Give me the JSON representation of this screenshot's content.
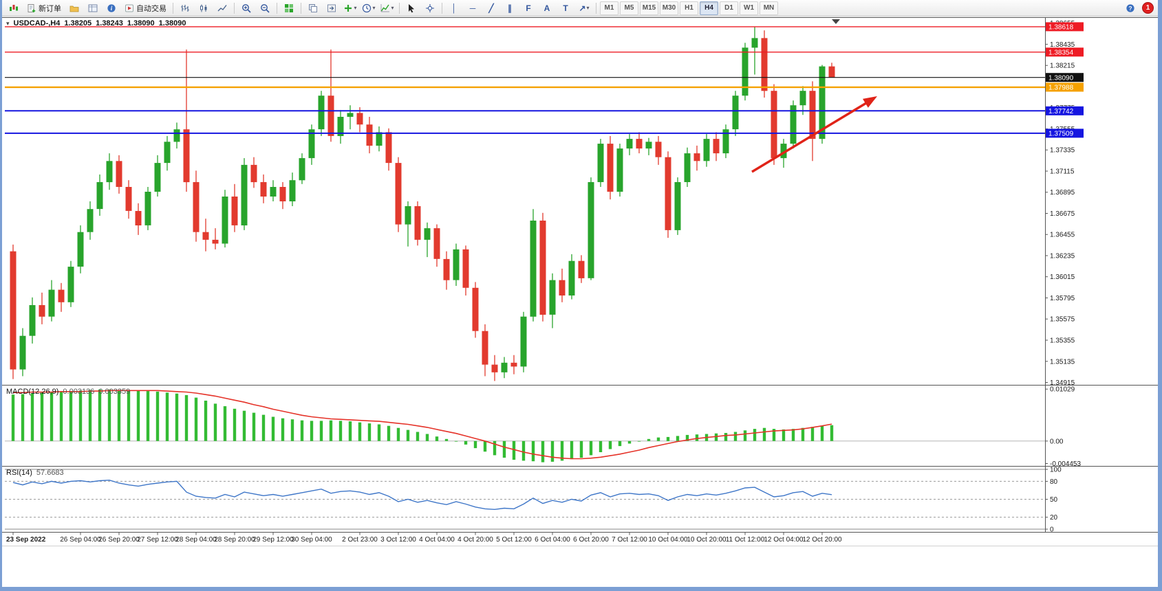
{
  "toolbar": {
    "new_order_label": "新订单",
    "auto_trading_label": "自动交易",
    "timeframes": [
      "M1",
      "M5",
      "M15",
      "M30",
      "H1",
      "H4",
      "D1",
      "W1",
      "MN"
    ],
    "active_timeframe": "H4",
    "notification_count": "1",
    "icons": {
      "caret": "▾",
      "vline": "│",
      "hline": "─",
      "trendline": "╱",
      "channel": "∥",
      "fibonacci": "F",
      "text": "A",
      "label": "T",
      "arrow_tool": "↗",
      "help": "?"
    }
  },
  "chart": {
    "symbol_label": "USDCAD-,H4",
    "quote_open": "1.38205",
    "quote_high": "1.38243",
    "quote_low": "1.38090",
    "quote_close": "1.38090",
    "up_color": "#28a42c",
    "down_color": "#e23a2e",
    "arrow_color": "#e02318",
    "levels": [
      {
        "label": "1.38618",
        "price": 1.38618,
        "color": "#ee1c25",
        "width": 1.4
      },
      {
        "label": "1.38354",
        "price": 1.38354,
        "color": "#ee1c25",
        "width": 1.4
      },
      {
        "label": "1.38090",
        "price": 1.3809,
        "color": "#111111",
        "width": 1.2
      },
      {
        "label": "1.37988",
        "price": 1.37988,
        "color": "#f5a100",
        "width": 2.4
      },
      {
        "label": "1.37742",
        "price": 1.37742,
        "color": "#1515e0",
        "width": 2.0
      },
      {
        "label": "1.37509",
        "price": 1.37509,
        "color": "#1515e0",
        "width": 2.0
      }
    ],
    "y_ticks": [
      "1.38655",
      "1.38435",
      "1.38215",
      "1.37995",
      "1.37775",
      "1.37555",
      "1.37335",
      "1.37115",
      "1.36895",
      "1.36675",
      "1.36455",
      "1.36235",
      "1.36015",
      "1.35795",
      "1.35575",
      "1.35355",
      "1.35135",
      "1.34915"
    ]
  },
  "macd": {
    "name": "MACD(12,26,9)",
    "value_main": "0.003136",
    "value_signal": "0.003359",
    "scale_max": "0.01029",
    "scale_zero": "0.00",
    "scale_min": "-0.004453"
  },
  "rsi": {
    "name": "RSI(14)",
    "value": "57.6683",
    "scale": [
      "100",
      "80",
      "50",
      "20",
      "0"
    ]
  },
  "chart_data": [
    {
      "type": "candlestick",
      "name": "USDCAD H4",
      "ylim": [
        1.3489,
        1.3871
      ],
      "x_labels": [
        "23 Sep 2022",
        "26 Sep 04:00",
        "26 Sep 20:00",
        "27 Sep 12:00",
        "28 Sep 04:00",
        "28 Sep 20:00",
        "29 Sep 12:00",
        "30 Sep 04:00",
        "2 Oct 23:00",
        "3 Oct 12:00",
        "4 Oct 04:00",
        "4 Oct 20:00",
        "5 Oct 12:00",
        "6 Oct 04:00",
        "6 Oct 20:00",
        "7 Oct 12:00",
        "10 Oct 04:00",
        "10 Oct 20:00",
        "11 Oct 12:00",
        "12 Oct 04:00",
        "12 Oct 20:00"
      ],
      "ohlc": [
        [
          1.3628,
          1.3635,
          1.3495,
          1.3505
        ],
        [
          1.3505,
          1.3548,
          1.3498,
          1.354
        ],
        [
          1.354,
          1.358,
          1.3532,
          1.3572
        ],
        [
          1.3572,
          1.3585,
          1.3552,
          1.356
        ],
        [
          1.356,
          1.3598,
          1.3555,
          1.3588
        ],
        [
          1.3588,
          1.3595,
          1.3565,
          1.3575
        ],
        [
          1.3575,
          1.3618,
          1.357,
          1.3612
        ],
        [
          1.3612,
          1.3655,
          1.3605,
          1.3648
        ],
        [
          1.3648,
          1.368,
          1.364,
          1.3672
        ],
        [
          1.3672,
          1.3708,
          1.3665,
          1.37
        ],
        [
          1.37,
          1.373,
          1.3692,
          1.3722
        ],
        [
          1.3722,
          1.3728,
          1.3688,
          1.3695
        ],
        [
          1.3695,
          1.3702,
          1.3662,
          1.367
        ],
        [
          1.367,
          1.3678,
          1.3645,
          1.3655
        ],
        [
          1.3655,
          1.3695,
          1.365,
          1.369
        ],
        [
          1.369,
          1.3728,
          1.3685,
          1.372
        ],
        [
          1.372,
          1.3748,
          1.3712,
          1.3742
        ],
        [
          1.3742,
          1.3762,
          1.3735,
          1.3755
        ],
        [
          1.3755,
          1.3838,
          1.369,
          1.37
        ],
        [
          1.37,
          1.3712,
          1.3638,
          1.3648
        ],
        [
          1.3648,
          1.3662,
          1.3628,
          1.364
        ],
        [
          1.364,
          1.3652,
          1.363,
          1.3636
        ],
        [
          1.3636,
          1.3692,
          1.3632,
          1.3685
        ],
        [
          1.3685,
          1.3698,
          1.3648,
          1.3655
        ],
        [
          1.3655,
          1.3725,
          1.365,
          1.3718
        ],
        [
          1.3718,
          1.3726,
          1.3694,
          1.37
        ],
        [
          1.37,
          1.3708,
          1.3678,
          1.3685
        ],
        [
          1.3685,
          1.3702,
          1.368,
          1.3695
        ],
        [
          1.3695,
          1.37,
          1.3672,
          1.368
        ],
        [
          1.368,
          1.371,
          1.3675,
          1.3702
        ],
        [
          1.3702,
          1.373,
          1.3698,
          1.3725
        ],
        [
          1.3725,
          1.376,
          1.3718,
          1.3755
        ],
        [
          1.3755,
          1.3795,
          1.3748,
          1.379
        ],
        [
          1.379,
          1.3838,
          1.3742,
          1.3748
        ],
        [
          1.3748,
          1.3775,
          1.374,
          1.3768
        ],
        [
          1.3768,
          1.378,
          1.3755,
          1.3772
        ],
        [
          1.3772,
          1.3778,
          1.3752,
          1.376
        ],
        [
          1.376,
          1.3768,
          1.373,
          1.3738
        ],
        [
          1.3738,
          1.3758,
          1.3732,
          1.3752
        ],
        [
          1.3752,
          1.3756,
          1.3712,
          1.372
        ],
        [
          1.372,
          1.3726,
          1.3648,
          1.3656
        ],
        [
          1.3656,
          1.368,
          1.3633,
          1.3675
        ],
        [
          1.3675,
          1.368,
          1.3634,
          1.364
        ],
        [
          1.364,
          1.3658,
          1.3622,
          1.3652
        ],
        [
          1.3652,
          1.3656,
          1.3612,
          1.362
        ],
        [
          1.362,
          1.3628,
          1.3588,
          1.3598
        ],
        [
          1.3598,
          1.3636,
          1.3592,
          1.363
        ],
        [
          1.363,
          1.3634,
          1.3582,
          1.359
        ],
        [
          1.359,
          1.3596,
          1.3538,
          1.3545
        ],
        [
          1.3545,
          1.3552,
          1.3498,
          1.351
        ],
        [
          1.351,
          1.352,
          1.3493,
          1.3502
        ],
        [
          1.3502,
          1.3518,
          1.3496,
          1.3512
        ],
        [
          1.3512,
          1.352,
          1.35,
          1.3508
        ],
        [
          1.3508,
          1.3565,
          1.3502,
          1.356
        ],
        [
          1.356,
          1.3672,
          1.3555,
          1.366
        ],
        [
          1.366,
          1.3668,
          1.3555,
          1.3562
        ],
        [
          1.3562,
          1.3605,
          1.3548,
          1.3598
        ],
        [
          1.3598,
          1.361,
          1.3575,
          1.3582
        ],
        [
          1.3582,
          1.3625,
          1.3578,
          1.3618
        ],
        [
          1.3618,
          1.3624,
          1.3595,
          1.36
        ],
        [
          1.36,
          1.3705,
          1.3598,
          1.37
        ],
        [
          1.37,
          1.3745,
          1.3695,
          1.374
        ],
        [
          1.374,
          1.3748,
          1.3682,
          1.369
        ],
        [
          1.369,
          1.374,
          1.3685,
          1.3735
        ],
        [
          1.3735,
          1.375,
          1.3728,
          1.3745
        ],
        [
          1.3745,
          1.3752,
          1.373,
          1.3735
        ],
        [
          1.3735,
          1.3746,
          1.3728,
          1.3742
        ],
        [
          1.3742,
          1.3748,
          1.3718,
          1.3726
        ],
        [
          1.3726,
          1.3732,
          1.3642,
          1.365
        ],
        [
          1.365,
          1.3705,
          1.3645,
          1.37
        ],
        [
          1.37,
          1.3736,
          1.3695,
          1.373
        ],
        [
          1.373,
          1.3738,
          1.3712,
          1.3722
        ],
        [
          1.3722,
          1.375,
          1.3716,
          1.3745
        ],
        [
          1.3745,
          1.3752,
          1.3722,
          1.373
        ],
        [
          1.373,
          1.376,
          1.3725,
          1.3755
        ],
        [
          1.3755,
          1.3795,
          1.3748,
          1.379
        ],
        [
          1.379,
          1.3845,
          1.3785,
          1.384
        ],
        [
          1.384,
          1.3862,
          1.3812,
          1.385
        ],
        [
          1.385,
          1.3858,
          1.3788,
          1.3795
        ],
        [
          1.3795,
          1.3802,
          1.3718,
          1.3725
        ],
        [
          1.3725,
          1.3745,
          1.3715,
          1.374
        ],
        [
          1.374,
          1.3785,
          1.3735,
          1.378
        ],
        [
          1.378,
          1.38,
          1.377,
          1.3795
        ],
        [
          1.3795,
          1.3805,
          1.3722,
          1.3745
        ],
        [
          1.3745,
          1.3822,
          1.374,
          1.38205
        ],
        [
          1.38205,
          1.38243,
          1.3809,
          1.3809
        ]
      ]
    },
    {
      "type": "bar",
      "name": "MACD(12,26,9) histogram",
      "ylim": [
        -0.0048,
        0.011
      ],
      "color": "#33bb33",
      "values": [
        0.0092,
        0.0093,
        0.0095,
        0.0096,
        0.0097,
        0.0098,
        0.0099,
        0.01,
        0.0101,
        0.0102,
        0.0102,
        0.0101,
        0.01,
        0.01,
        0.0099,
        0.0098,
        0.0096,
        0.0094,
        0.0091,
        0.0086,
        0.008,
        0.0074,
        0.0069,
        0.0064,
        0.006,
        0.0056,
        0.0052,
        0.0048,
        0.0045,
        0.0043,
        0.0041,
        0.004,
        0.004,
        0.0041,
        0.004,
        0.0039,
        0.0037,
        0.0035,
        0.0033,
        0.003,
        0.0026,
        0.0022,
        0.0018,
        0.0014,
        0.0009,
        0.0004,
        -0.0001,
        -0.0007,
        -0.0014,
        -0.0021,
        -0.0028,
        -0.0033,
        -0.0037,
        -0.0039,
        -0.004,
        -0.0042,
        -0.0041,
        -0.0039,
        -0.0036,
        -0.0033,
        -0.0028,
        -0.0022,
        -0.0016,
        -0.001,
        -0.0005,
        0.0,
        0.0004,
        0.0007,
        0.0008,
        0.001,
        0.0012,
        0.0013,
        0.0014,
        0.0015,
        0.0016,
        0.0018,
        0.0021,
        0.0024,
        0.0026,
        0.0024,
        0.0023,
        0.0024,
        0.0026,
        0.0028,
        0.003,
        0.003136
      ]
    },
    {
      "type": "line",
      "name": "MACD signal",
      "color": "#e53228",
      "values": [
        0.0096,
        0.0096,
        0.0097,
        0.0097,
        0.0097,
        0.0098,
        0.0098,
        0.0098,
        0.0099,
        0.0099,
        0.01,
        0.01,
        0.01,
        0.01,
        0.01,
        0.01,
        0.0099,
        0.0098,
        0.0097,
        0.0095,
        0.0092,
        0.0089,
        0.0085,
        0.0081,
        0.0077,
        0.0072,
        0.0068,
        0.0063,
        0.0059,
        0.0055,
        0.0051,
        0.0048,
        0.0046,
        0.0044,
        0.0043,
        0.0042,
        0.0041,
        0.004,
        0.0039,
        0.0037,
        0.0035,
        0.0033,
        0.003,
        0.0027,
        0.0023,
        0.0019,
        0.0015,
        0.001,
        0.0005,
        0.0,
        -0.0006,
        -0.0012,
        -0.0017,
        -0.0022,
        -0.0026,
        -0.0029,
        -0.0032,
        -0.0034,
        -0.0035,
        -0.0035,
        -0.0034,
        -0.0032,
        -0.0029,
        -0.0026,
        -0.0022,
        -0.0018,
        -0.0013,
        -0.0009,
        -0.0005,
        -0.0001,
        0.0002,
        0.0005,
        0.0007,
        0.0009,
        0.0011,
        0.0012,
        0.0014,
        0.0016,
        0.0018,
        0.002,
        0.0021,
        0.0022,
        0.0024,
        0.0027,
        0.003,
        0.003359
      ]
    },
    {
      "type": "line",
      "name": "RSI(14)",
      "color": "#3e76c8",
      "ylim": [
        0,
        100
      ],
      "levels": [
        80,
        50,
        20
      ],
      "values": [
        78,
        74,
        79,
        76,
        80,
        77,
        80,
        81,
        79,
        81,
        82,
        77,
        74,
        72,
        75,
        77,
        79,
        80,
        62,
        55,
        53,
        52,
        58,
        54,
        62,
        59,
        56,
        58,
        55,
        58,
        61,
        64,
        67,
        60,
        63,
        64,
        62,
        58,
        61,
        55,
        46,
        50,
        45,
        48,
        44,
        41,
        46,
        42,
        37,
        34,
        33,
        35,
        34,
        42,
        52,
        43,
        48,
        45,
        50,
        47,
        57,
        61,
        54,
        59,
        60,
        58,
        59,
        56,
        48,
        54,
        58,
        56,
        59,
        57,
        60,
        64,
        69,
        70,
        62,
        54,
        56,
        61,
        63,
        55,
        60,
        57.6683
      ]
    }
  ]
}
